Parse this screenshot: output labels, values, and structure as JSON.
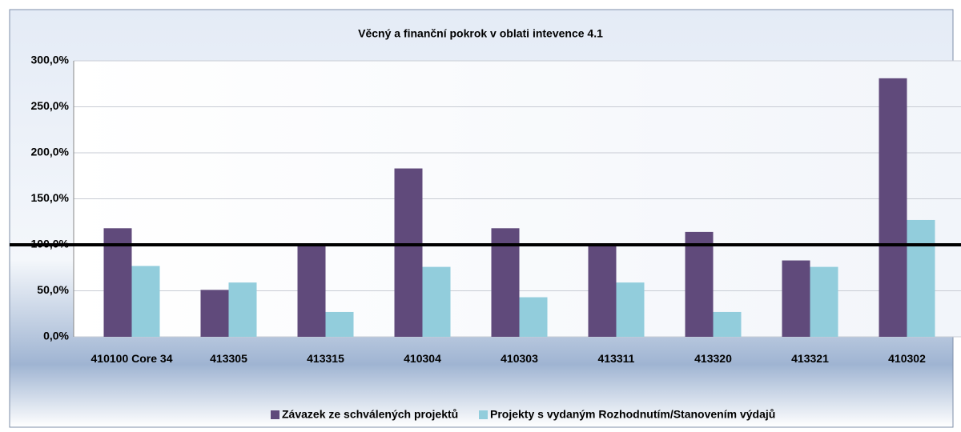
{
  "chart_data": {
    "type": "bar",
    "title": "Věcný a finanční pokrok v oblati intevence 4.1",
    "categories": [
      "410100   Core 34",
      "413305",
      "413315",
      "410304",
      "410303",
      "413311",
      "413320",
      "413321",
      "410302"
    ],
    "series": [
      {
        "name": "Závazek ze schválených projektů",
        "color": "#604a7b",
        "values": [
          118,
          51,
          100,
          183,
          118,
          100,
          114,
          83,
          281
        ]
      },
      {
        "name": "Projekty s vydaným Rozhodnutím/Stanovením výdajů",
        "color": "#92cddc",
        "values": [
          77,
          59,
          27,
          76,
          43,
          59,
          27,
          76,
          127
        ]
      }
    ],
    "reference_line": 100,
    "ylim": [
      0,
      300
    ],
    "yticks": [
      {
        "value": 0,
        "label": "0,0%"
      },
      {
        "value": 50,
        "label": "50,0%"
      },
      {
        "value": 100,
        "label": "100,0%"
      },
      {
        "value": 150,
        "label": "150,0%"
      },
      {
        "value": 200,
        "label": "200,0%"
      },
      {
        "value": 250,
        "label": "250,0%"
      },
      {
        "value": 300,
        "label": "300,0%"
      }
    ],
    "grid": true
  }
}
